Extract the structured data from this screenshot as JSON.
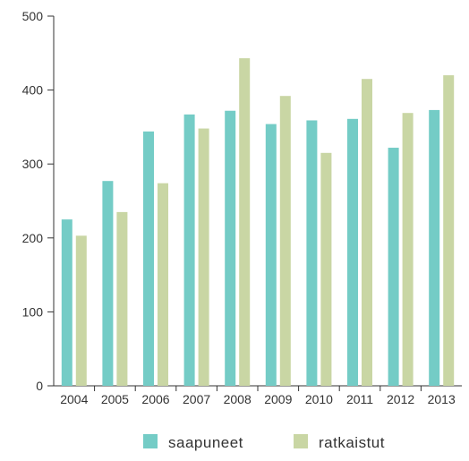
{
  "chart_data": {
    "type": "bar",
    "categories": [
      "2004",
      "2005",
      "2006",
      "2007",
      "2008",
      "2009",
      "2010",
      "2011",
      "2012",
      "2013"
    ],
    "series": [
      {
        "name": "saapuneet",
        "color": "#74ccc6",
        "values": [
          225,
          277,
          344,
          367,
          372,
          354,
          359,
          361,
          322,
          373
        ]
      },
      {
        "name": "ratkaistut",
        "color": "#c9d6a4",
        "values": [
          203,
          235,
          274,
          348,
          443,
          392,
          315,
          415,
          369,
          420
        ]
      }
    ],
    "ylim": [
      0,
      500
    ],
    "yticks": [
      0,
      100,
      200,
      300,
      400,
      500
    ],
    "title": "",
    "xlabel": "",
    "ylabel": "",
    "grid": false,
    "legend_position": "bottom-center"
  }
}
